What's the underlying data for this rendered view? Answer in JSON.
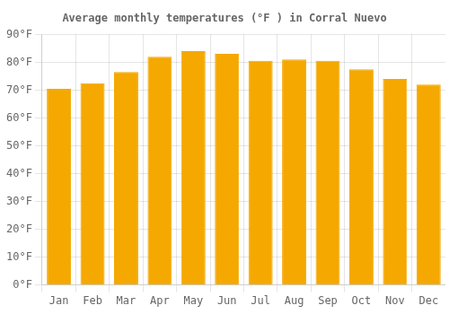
{
  "chart_data": {
    "type": "bar",
    "title": "Average monthly temperatures (°F ) in Corral Nuevo",
    "categories": [
      "Jan",
      "Feb",
      "Mar",
      "Apr",
      "May",
      "Jun",
      "Jul",
      "Aug",
      "Sep",
      "Oct",
      "Nov",
      "Dec"
    ],
    "values": [
      70.5,
      72.5,
      76.5,
      82.0,
      84.0,
      83.0,
      80.5,
      81.0,
      80.5,
      77.5,
      74.0,
      72.0
    ],
    "color": "#F5A800",
    "ylim": [
      0,
      90
    ],
    "yticks": [
      {
        "value": 0,
        "label": "0°F"
      },
      {
        "value": 10,
        "label": "10°F"
      },
      {
        "value": 20,
        "label": "20°F"
      },
      {
        "value": 30,
        "label": "30°F"
      },
      {
        "value": 40,
        "label": "40°F"
      },
      {
        "value": 50,
        "label": "50°F"
      },
      {
        "value": 60,
        "label": "60°F"
      },
      {
        "value": 70,
        "label": "70°F"
      },
      {
        "value": 80,
        "label": "80°F"
      },
      {
        "value": 90,
        "label": "90°F"
      }
    ],
    "grid": true
  }
}
